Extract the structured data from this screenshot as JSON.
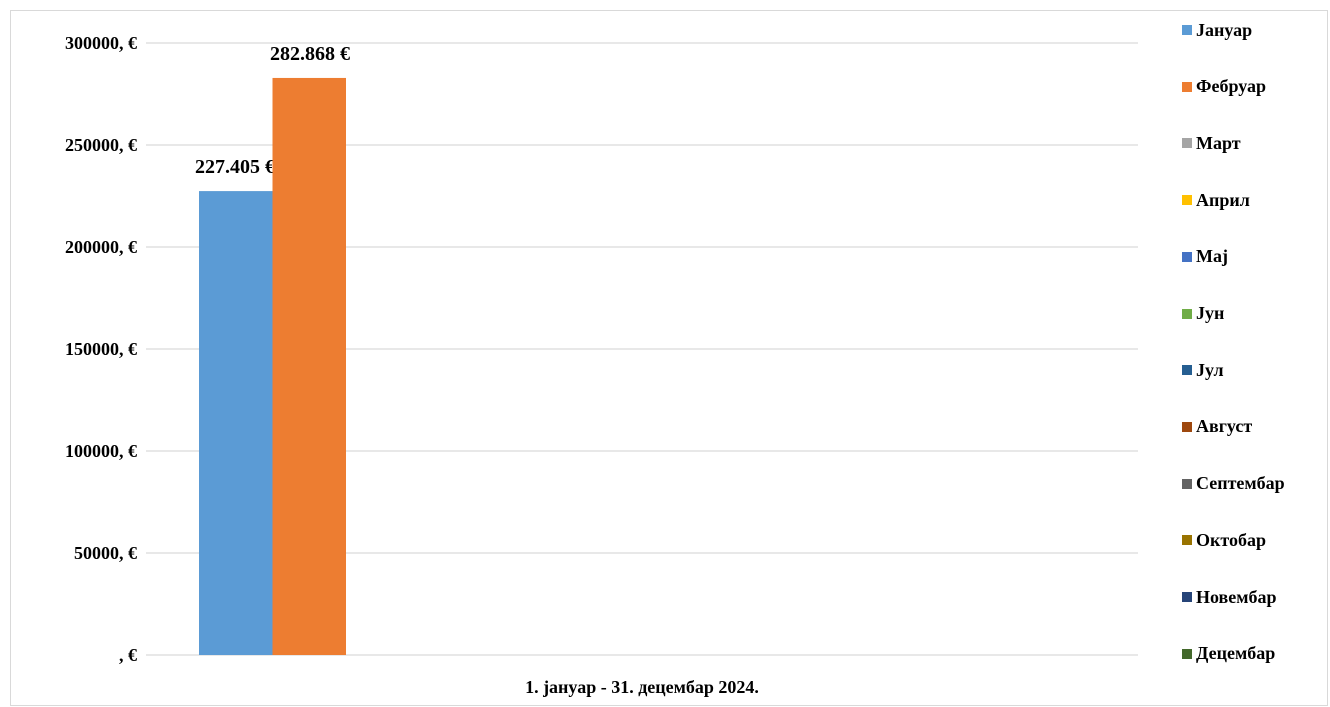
{
  "chart_data": {
    "type": "bar",
    "title": "",
    "xlabel": "",
    "ylabel": "",
    "categories": [
      "1. јануар - 31. децембар 2024."
    ],
    "series": [
      {
        "name": "Јануар",
        "values": [
          227405
        ],
        "color": "#5b9bd5",
        "label": "227.405 €"
      },
      {
        "name": "Фебруар",
        "values": [
          282868
        ],
        "color": "#ed7d31",
        "label": "282.868 €"
      },
      {
        "name": "Март",
        "values": [
          null
        ],
        "color": "#a5a5a5",
        "label": ""
      },
      {
        "name": "Април",
        "values": [
          null
        ],
        "color": "#ffc000",
        "label": ""
      },
      {
        "name": "Мај",
        "values": [
          null
        ],
        "color": "#4472c4",
        "label": ""
      },
      {
        "name": "Јун",
        "values": [
          null
        ],
        "color": "#70ad47",
        "label": ""
      },
      {
        "name": "Јул",
        "values": [
          null
        ],
        "color": "#255e91",
        "label": ""
      },
      {
        "name": "Август",
        "values": [
          null
        ],
        "color": "#9e480e",
        "label": ""
      },
      {
        "name": "Септембар",
        "values": [
          null
        ],
        "color": "#636363",
        "label": ""
      },
      {
        "name": "Октобар",
        "values": [
          null
        ],
        "color": "#997300",
        "label": ""
      },
      {
        "name": "Новембар",
        "values": [
          null
        ],
        "color": "#264478",
        "label": ""
      },
      {
        "name": "Децембар",
        "values": [
          null
        ],
        "color": "#43682b",
        "label": ""
      }
    ],
    "ylim": [
      0,
      300000
    ],
    "yticks": [
      0,
      50000,
      100000,
      150000,
      200000,
      250000,
      300000
    ],
    "ytick_labels": [
      ", €",
      "50000, €",
      "100000, €",
      "150000, €",
      "200000, €",
      "250000, €",
      "300000, €"
    ],
    "grid": true,
    "legend_position": "right"
  }
}
